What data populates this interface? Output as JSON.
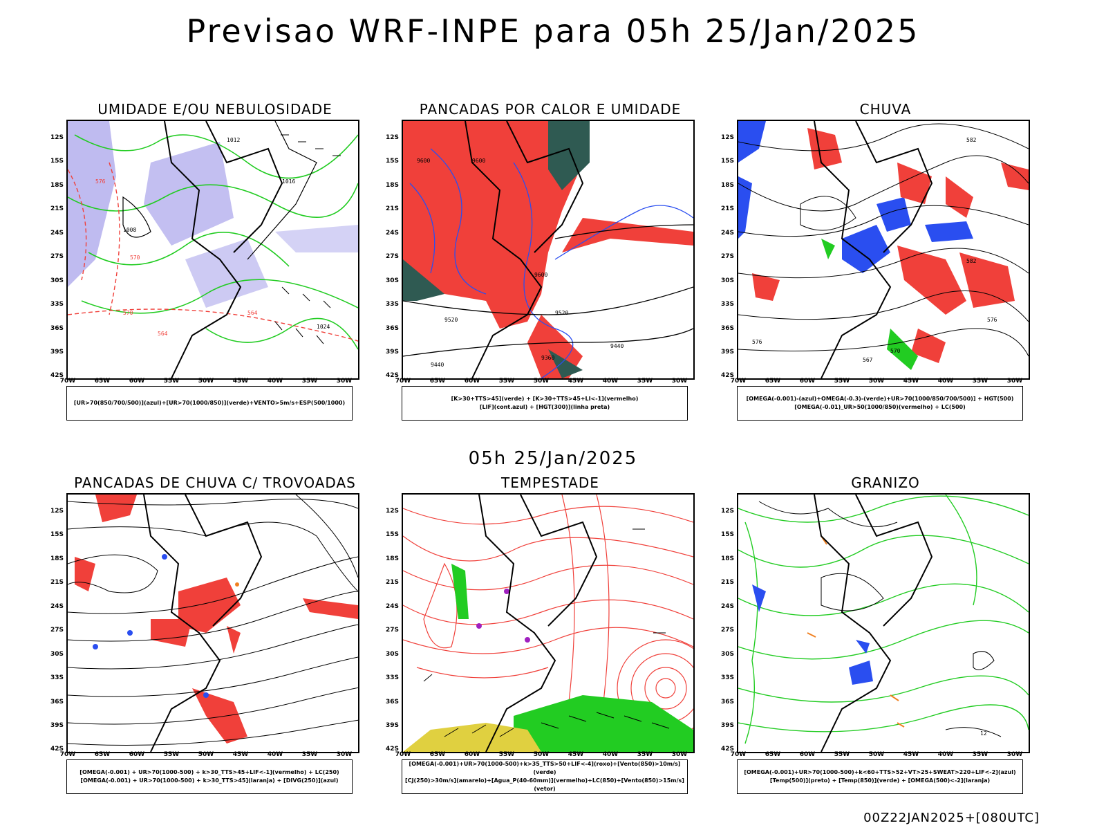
{
  "header": {
    "title": "Previsao WRF-INPE  para 05h 25/Jan/2025"
  },
  "mid_label": "05h 25/Jan/2025",
  "footer": "00Z22JAN2025+[080UTC]",
  "axes": {
    "lat_labels": [
      "12S",
      "15S",
      "18S",
      "21S",
      "24S",
      "27S",
      "30S",
      "33S",
      "36S",
      "39S",
      "42S"
    ],
    "lon_labels": [
      "70W",
      "65W",
      "60W",
      "55W",
      "50W",
      "45W",
      "40W",
      "35W",
      "30W"
    ]
  },
  "colors": {
    "red": "#f0403a",
    "blue": "#2a4ef0",
    "green": "#22cc22",
    "lavender": "#b8b4ee",
    "darkteal": "#2f5a52",
    "yellow": "#e0d040",
    "orange": "#f08020",
    "purple": "#a020c0"
  },
  "panels": [
    {
      "id": "umidade",
      "title": "UMIDADE E/OU NEBULOSIDADE",
      "legend": [
        "[UR>70(850/700/500)](azul)+[UR>70(1000/850)](verde)+VENTO>5m/s+ESP(500/1000)"
      ],
      "contour_labels": [
        "1012",
        "1016",
        "1008",
        "1024",
        "576",
        "570",
        "564",
        "558"
      ]
    },
    {
      "id": "pancadas_calor",
      "title": "PANCADAS POR CALOR E UMIDADE",
      "legend": [
        "[K>30+TTS>45](verde) + [K>30+TTS>45+LI<-1](vermelho)",
        "[LIF](cont.azul) + [HGT(300)](linha preta)"
      ],
      "contour_labels": [
        "9600",
        "9520",
        "9440",
        "9360"
      ]
    },
    {
      "id": "chuva",
      "title": "CHUVA",
      "legend": [
        "[OMEGA(-0.001)-(azul)+OMEGA(-0.3)-(verde)+UR>70(1000/850/700/500)] + HGT(500)",
        "[OMEGA(-0.01)_UR>50(1000/850)(vermelho) + LC(500)"
      ],
      "contour_labels": [
        "582",
        "576",
        "570",
        "567"
      ]
    },
    {
      "id": "pancadas_trovoadas",
      "title": "PANCADAS DE CHUVA C/ TROVOADAS",
      "legend": [
        "[OMEGA(-0.001) + UR>70(1000-500) + k>30_TTS>45+LIF<-1](vermelho) + LC(250)",
        "[OMEGA(-0.001) + UR>70(1000-500) + k>30_TTS>45](laranja) + [DIVG(250)](azul)"
      ],
      "contour_labels": []
    },
    {
      "id": "tempestade",
      "title": "TEMPESTADE",
      "legend": [
        "[OMEGA(-0.001)+UR>70(1000-500)+k>35_TTS>50+LIF<-4](roxo)+[Vento(850)>10m/s](verde)",
        "[CJ(250)>30m/s](amarelo)+[Agua_P(40-60mm)](vermelho)+LC(850)+[Vento(850)>15m/s](vetor)"
      ],
      "contour_labels": []
    },
    {
      "id": "granizo",
      "title": "GRANIZO",
      "legend": [
        "[OMEGA(-0.001)+UR>70(1000-500)+k<60+TTS>52+VT>25+SWEAT>220+LIF<-2](azul)",
        "[Temp(500)](preto) + [Temp(850)](verde) + [OMEGA(500)<-2](laranja)"
      ],
      "contour_labels": [
        "12"
      ]
    }
  ]
}
